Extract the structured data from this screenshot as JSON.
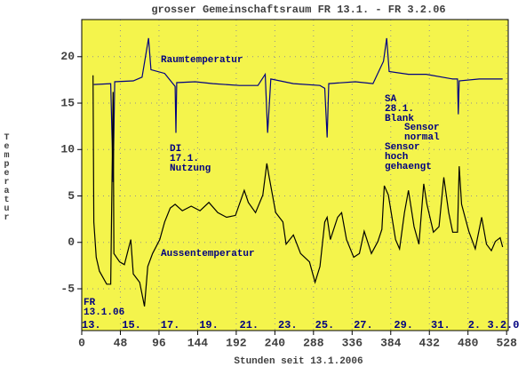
{
  "chart_data": {
    "type": "line",
    "title": "grosser Gemeinschaftsraum FR 13.1. - FR 3.2.06",
    "x_label": "Stunden seit 13.1.2006",
    "y_label": "Temperatur",
    "xlim": [
      0,
      530
    ],
    "ylim": [
      -9.5,
      24
    ],
    "xticks": [
      0,
      48,
      96,
      144,
      192,
      240,
      288,
      336,
      384,
      432,
      480,
      528
    ],
    "yticks": [
      -5,
      0,
      5,
      10,
      15,
      20
    ],
    "grid": true,
    "day_labels": [
      {
        "value": 0,
        "label": "13."
      },
      {
        "value": 50,
        "label": "15."
      },
      {
        "value": 98,
        "label": "17."
      },
      {
        "value": 146,
        "label": "19."
      },
      {
        "value": 196,
        "label": "21."
      },
      {
        "value": 244,
        "label": "23."
      },
      {
        "value": 290,
        "label": "25."
      },
      {
        "value": 338,
        "label": "27."
      },
      {
        "value": 388,
        "label": "29."
      },
      {
        "value": 434,
        "label": "31."
      },
      {
        "value": 480,
        "label": "2."
      },
      {
        "value": 504,
        "label": "3.2.0"
      }
    ],
    "annotations": [
      [
        "Raumtemperatur"
      ],
      [
        "Aussentemperatur"
      ],
      [
        "DI",
        "17.1.",
        "Nutzung"
      ],
      [
        "SA",
        "28.1.",
        "Blank"
      ],
      [
        "Sensor",
        "normal"
      ],
      [
        "Sensor",
        "hoch",
        "gehaengt"
      ],
      [
        "FR",
        "13.1.06"
      ]
    ],
    "series": [
      {
        "name": "Raumtemperatur",
        "color": "#000080",
        "x": [
          15,
          36,
          39,
          41,
          64,
          75,
          83,
          86,
          103,
          116,
          117,
          118,
          141,
          163,
          196,
          219,
          228,
          231,
          235,
          263,
          296,
          302,
          305,
          307,
          340,
          362,
          375,
          379,
          382,
          406,
          428,
          461,
          467,
          468,
          469,
          494,
          523
        ],
        "values": [
          17.0,
          17.1,
          6.5,
          17.3,
          17.4,
          17.8,
          22.0,
          18.6,
          18.2,
          16.8,
          11.8,
          17.2,
          17.3,
          17.1,
          16.9,
          16.9,
          18.1,
          11.8,
          17.6,
          17.1,
          16.9,
          16.6,
          11.3,
          17.1,
          17.3,
          17.1,
          19.5,
          22.0,
          18.4,
          18.1,
          18.1,
          17.6,
          17.6,
          13.8,
          17.4,
          17.6,
          17.6
        ]
      },
      {
        "name": "Aussentemperatur",
        "color": "#000000",
        "x": [
          14,
          15,
          18,
          22,
          31,
          36,
          39,
          40,
          47,
          53,
          61,
          64,
          72,
          78,
          82,
          88,
          97,
          103,
          110,
          116,
          125,
          136,
          147,
          158,
          169,
          180,
          191,
          202,
          207,
          216,
          225,
          230,
          233,
          241,
          250,
          254,
          263,
          272,
          283,
          290,
          296,
          302,
          305,
          309,
          318,
          323,
          329,
          338,
          345,
          351,
          360,
          368,
          373,
          376,
          381,
          390,
          395,
          401,
          406,
          413,
          419,
          425,
          429,
          437,
          444,
          450,
          456,
          461,
          467,
          469,
          472,
          481,
          489,
          497,
          503,
          509,
          514,
          520,
          523
        ],
        "values": [
          18.0,
          2.2,
          -1.6,
          -3.1,
          -4.5,
          -4.5,
          16.2,
          -1.2,
          -2.1,
          -2.4,
          0.3,
          -3.4,
          -4.3,
          -6.9,
          -2.6,
          -1.2,
          0.3,
          2.2,
          3.7,
          4.1,
          3.4,
          3.9,
          3.4,
          4.3,
          3.2,
          2.7,
          2.9,
          5.6,
          4.3,
          3.2,
          5.1,
          8.5,
          7.0,
          3.2,
          2.2,
          -0.2,
          0.8,
          -1.2,
          -2.1,
          -4.3,
          -2.6,
          2.2,
          2.7,
          0.3,
          2.7,
          3.2,
          0.3,
          -1.6,
          -1.2,
          1.2,
          -1.2,
          0.1,
          1.4,
          6.1,
          5.1,
          0.3,
          -0.7,
          3.2,
          5.6,
          1.7,
          -0.2,
          6.3,
          4.1,
          1.1,
          1.7,
          7.0,
          3.2,
          1.1,
          1.1,
          8.2,
          4.1,
          1.2,
          -0.7,
          2.7,
          -0.2,
          -0.9,
          0.1,
          0.5,
          -0.5
        ]
      }
    ]
  }
}
